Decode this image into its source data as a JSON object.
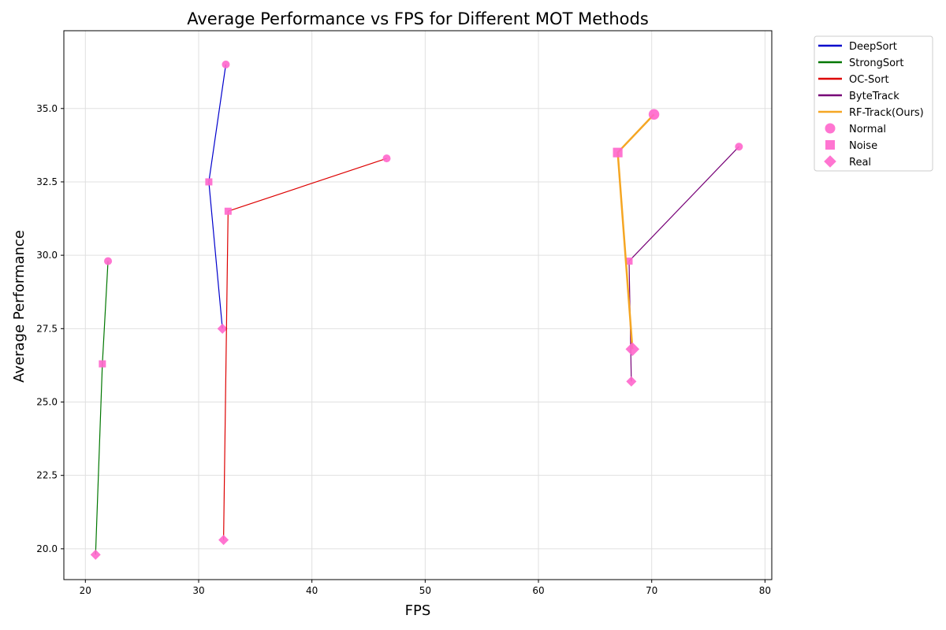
{
  "chart_data": {
    "type": "line",
    "title": "Average Performance vs FPS for Different MOT Methods",
    "xlabel": "FPS",
    "ylabel": "Average Performance",
    "xlim": [
      18.1,
      80.6
    ],
    "ylim": [
      18.95,
      37.65
    ],
    "xticks": [
      20,
      30,
      40,
      50,
      60,
      70,
      80
    ],
    "yticks": [
      20.0,
      22.5,
      25.0,
      27.5,
      30.0,
      32.5,
      35.0
    ],
    "grid": true,
    "legend_position": "outside-top-right",
    "marker_color": "#ff66cc",
    "marker_types": [
      {
        "name": "Normal",
        "shape": "circle"
      },
      {
        "name": "Noise",
        "shape": "square"
      },
      {
        "name": "Real",
        "shape": "diamond"
      }
    ],
    "series": [
      {
        "name": "DeepSort",
        "color": "#0000cc",
        "emphasized": false,
        "points": [
          {
            "x": 32.4,
            "y": 36.5,
            "type": "Normal"
          },
          {
            "x": 30.9,
            "y": 32.5,
            "type": "Noise"
          },
          {
            "x": 32.1,
            "y": 27.5,
            "type": "Real"
          }
        ]
      },
      {
        "name": "StrongSort",
        "color": "#007700",
        "emphasized": false,
        "points": [
          {
            "x": 22.0,
            "y": 29.8,
            "type": "Normal"
          },
          {
            "x": 21.5,
            "y": 26.3,
            "type": "Noise"
          },
          {
            "x": 20.9,
            "y": 19.8,
            "type": "Real"
          }
        ]
      },
      {
        "name": "OC-Sort",
        "color": "#dd0000",
        "emphasized": false,
        "points": [
          {
            "x": 46.6,
            "y": 33.3,
            "type": "Normal"
          },
          {
            "x": 32.6,
            "y": 31.5,
            "type": "Noise"
          },
          {
            "x": 32.2,
            "y": 20.3,
            "type": "Real"
          }
        ]
      },
      {
        "name": "ByteTrack",
        "color": "#770077",
        "emphasized": false,
        "points": [
          {
            "x": 77.7,
            "y": 33.7,
            "type": "Normal"
          },
          {
            "x": 68.0,
            "y": 29.8,
            "type": "Noise"
          },
          {
            "x": 68.2,
            "y": 25.7,
            "type": "Real"
          }
        ]
      },
      {
        "name": "RF-Track(Ours)",
        "color": "#f5a623",
        "emphasized": true,
        "points": [
          {
            "x": 70.2,
            "y": 34.8,
            "type": "Normal"
          },
          {
            "x": 67.0,
            "y": 33.5,
            "type": "Noise"
          },
          {
            "x": 68.3,
            "y": 26.8,
            "type": "Real"
          }
        ]
      }
    ]
  }
}
